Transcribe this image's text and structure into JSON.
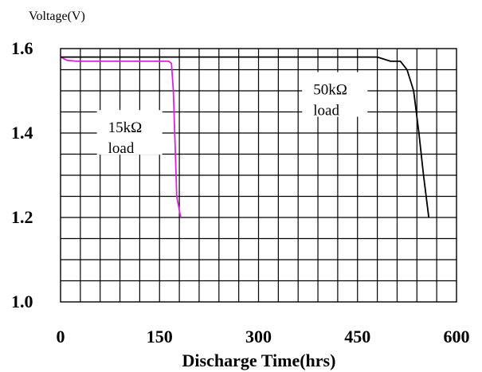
{
  "chart_data": {
    "type": "line",
    "ylabel": "Voltage(V)",
    "xlabel": "Discharge Time(hrs)",
    "xlim": [
      0,
      600
    ],
    "ylim": [
      1.0,
      1.6
    ],
    "x_ticks": [
      0,
      150,
      300,
      450,
      600
    ],
    "y_ticks": [
      1.0,
      1.2,
      1.4,
      1.6
    ],
    "x_tick_labels": [
      "0",
      "150",
      "300",
      "450",
      "600"
    ],
    "y_tick_labels": [
      "1.0",
      "1.2",
      "1.4",
      "1.6"
    ],
    "grid": true,
    "series": [
      {
        "name": "15kΩ load",
        "color": "#e020e0",
        "points": [
          [
            0,
            1.58
          ],
          [
            10,
            1.572
          ],
          [
            25,
            1.57
          ],
          [
            100,
            1.57
          ],
          [
            164,
            1.57
          ],
          [
            168,
            1.565
          ],
          [
            171,
            1.5
          ],
          [
            173,
            1.4
          ],
          [
            175,
            1.3
          ],
          [
            176,
            1.25
          ],
          [
            182,
            1.2
          ]
        ]
      },
      {
        "name": "50kΩ load",
        "color": "#000000",
        "points": [
          [
            0,
            1.58
          ],
          [
            200,
            1.58
          ],
          [
            480,
            1.58
          ],
          [
            500,
            1.57
          ],
          [
            515,
            1.57
          ],
          [
            525,
            1.55
          ],
          [
            535,
            1.5
          ],
          [
            543,
            1.4
          ],
          [
            550,
            1.3
          ],
          [
            558,
            1.2
          ]
        ]
      }
    ],
    "annotations": [
      {
        "lines": [
          "15kΩ",
          "load"
        ],
        "x": 72,
        "y": 1.36
      },
      {
        "lines": [
          "50kΩ",
          "load"
        ],
        "x": 383,
        "y": 1.45
      }
    ]
  }
}
